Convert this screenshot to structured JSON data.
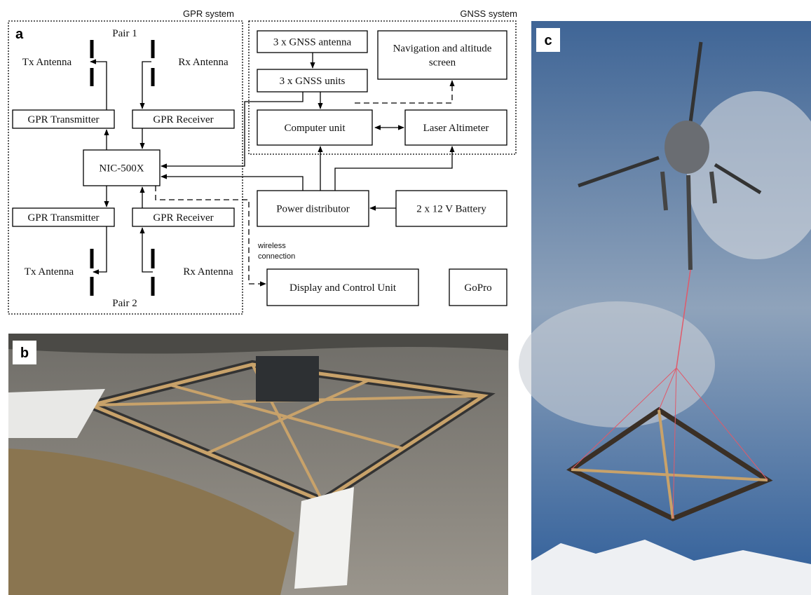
{
  "panels": [
    {
      "label": "a"
    },
    {
      "label": "b"
    },
    {
      "label": "c"
    }
  ],
  "groups": [
    {
      "label": "GPR system"
    },
    {
      "label": "GNSS system"
    }
  ],
  "pairs": [
    {
      "label": "Pair 1"
    },
    {
      "label": "Pair 2"
    }
  ],
  "antennas": [
    {
      "label": "Tx Antenna"
    },
    {
      "label": "Rx Antenna"
    },
    {
      "label": "Tx Antenna"
    },
    {
      "label": "Rx Antenna"
    }
  ],
  "nodes": [
    {
      "lines": [
        "GPR Transmitter"
      ]
    },
    {
      "lines": [
        "GPR Receiver"
      ]
    },
    {
      "lines": [
        "NIC-500X"
      ]
    },
    {
      "lines": [
        "GPR Transmitter"
      ]
    },
    {
      "lines": [
        "GPR Receiver"
      ]
    },
    {
      "lines": [
        "3 x GNSS antenna"
      ]
    },
    {
      "lines": [
        "3 x GNSS units"
      ]
    },
    {
      "lines": [
        "Navigation and altitude",
        "screen"
      ]
    },
    {
      "lines": [
        "Computer unit"
      ]
    },
    {
      "lines": [
        "Laser Altimeter"
      ]
    },
    {
      "lines": [
        "Power distributor"
      ]
    },
    {
      "lines": [
        "2 x 12 V Battery"
      ]
    },
    {
      "lines": [
        "Display and Control Unit"
      ]
    },
    {
      "lines": [
        "GoPro"
      ]
    }
  ],
  "wireless": {
    "lines": [
      "wireless",
      "connection"
    ]
  }
}
